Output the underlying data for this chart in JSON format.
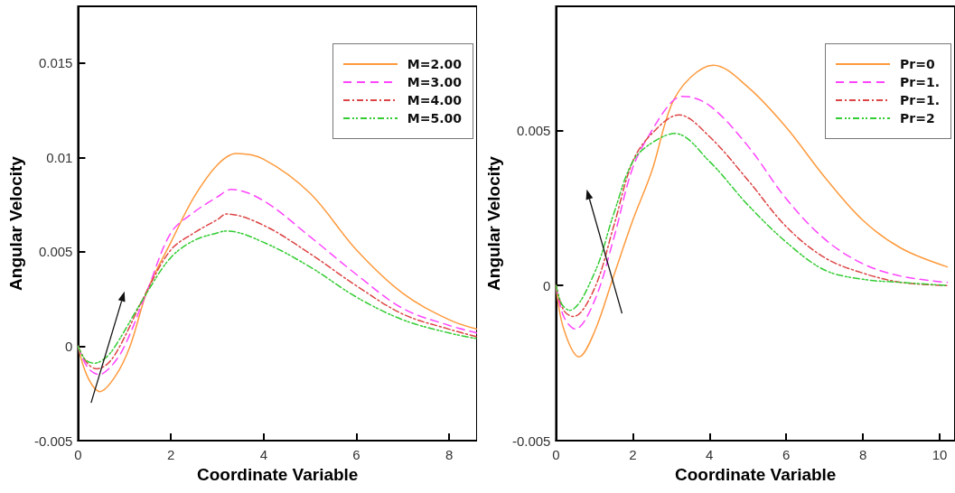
{
  "chart_data": [
    {
      "type": "line",
      "xlabel": "Coordinate Variable",
      "ylabel": "Angular Velocity",
      "xlim": [
        0,
        8.6
      ],
      "xticks": [
        0,
        2,
        4,
        6,
        8
      ],
      "ylim": [
        -0.005,
        0.018
      ],
      "yticks": [
        -0.005,
        0,
        0.005,
        0.01,
        0.015
      ],
      "grid": false,
      "legend": "top right",
      "marker": "none",
      "series": [
        {
          "name": "M=2.00",
          "color": "#ff9a3c",
          "line_style": "solid",
          "x": [
            0,
            0.2,
            0.47,
            0.8,
            1.12,
            1.5,
            2,
            2.5,
            3,
            3.4,
            4,
            5,
            6,
            7,
            8,
            8.6
          ],
          "values": [
            0,
            -0.0016,
            -0.0024,
            -0.0016,
            0,
            0.003,
            0.0055,
            0.0079,
            0.0096,
            0.0102,
            0.0099,
            0.0081,
            0.0051,
            0.0028,
            0.0014,
            0.0009
          ]
        },
        {
          "name": "M=3.00",
          "color": "#ff44ff",
          "line_style": "dashed",
          "x": [
            0,
            0.2,
            0.45,
            0.7,
            1,
            1.5,
            2,
            2.5,
            3,
            3.3,
            4,
            5,
            6,
            7,
            8,
            8.6
          ],
          "values": [
            0,
            -0.0011,
            -0.0015,
            -0.0011,
            0,
            0.003,
            0.006,
            0.0071,
            0.0079,
            0.0083,
            0.0077,
            0.0058,
            0.0038,
            0.002,
            0.0011,
            0.0007
          ]
        },
        {
          "name": "M=4.00",
          "color": "#dd4444",
          "line_style": "dashdot",
          "x": [
            0,
            0.2,
            0.4,
            0.65,
            0.9,
            1.5,
            2,
            2.5,
            3,
            3.2,
            4,
            5,
            6,
            7,
            8,
            8.6
          ],
          "values": [
            0,
            -0.0009,
            -0.0012,
            -0.0009,
            0,
            0.003,
            0.0051,
            0.006,
            0.0067,
            0.007,
            0.0064,
            0.0049,
            0.0032,
            0.0017,
            0.0009,
            0.0005
          ]
        },
        {
          "name": "M=5.00",
          "color": "#33cc33",
          "line_style": "dashdotdot",
          "x": [
            0,
            0.15,
            0.35,
            0.6,
            0.8,
            1.5,
            2,
            2.5,
            3,
            3.2,
            4,
            5,
            6,
            7,
            8,
            8.6
          ],
          "values": [
            0,
            -0.0007,
            -0.0009,
            -0.0006,
            0,
            0.0029,
            0.0047,
            0.0056,
            0.006,
            0.0061,
            0.0055,
            0.0042,
            0.0026,
            0.0014,
            0.0007,
            0.0004
          ]
        }
      ]
    },
    {
      "type": "line",
      "xlabel": "Coordinate Variable",
      "ylabel": "Angular Velocity",
      "xlim": [
        0,
        10.4
      ],
      "xticks": [
        0,
        2,
        4,
        6,
        8,
        10
      ],
      "ylim": [
        -0.005,
        0.009
      ],
      "yticks": [
        -0.005,
        0,
        0.005
      ],
      "grid": false,
      "legend": "top right",
      "marker": "none",
      "series": [
        {
          "name": "Pr=0",
          "color": "#ff9a3c",
          "line_style": "solid",
          "x": [
            0,
            0.2,
            0.6,
            1,
            1.5,
            2,
            2.5,
            3,
            3.5,
            4.1,
            5,
            6,
            7,
            8,
            9,
            10.2
          ],
          "values": [
            0,
            -0.0014,
            -0.0023,
            -0.0015,
            0.0003,
            0.0021,
            0.0037,
            0.0058,
            0.0067,
            0.0071,
            0.0064,
            0.0051,
            0.0035,
            0.0021,
            0.0012,
            0.0006
          ]
        },
        {
          "name": "Pr=1.",
          "color": "#ff44ff",
          "line_style": "dashed",
          "x": [
            0,
            0.2,
            0.5,
            1,
            1.5,
            2,
            2.5,
            3,
            3.3,
            4,
            5,
            6,
            7,
            8,
            9,
            10.2
          ],
          "values": [
            0,
            -0.001,
            -0.0014,
            -0.0005,
            0.0015,
            0.0038,
            0.005,
            0.0059,
            0.0061,
            0.0058,
            0.0045,
            0.0028,
            0.0015,
            0.0007,
            0.0003,
            0.0001
          ]
        },
        {
          "name": "Pr=1.",
          "color": "#dd4444",
          "line_style": "dashdot",
          "x": [
            0,
            0.2,
            0.45,
            1,
            1.5,
            2,
            2.5,
            3.2,
            4,
            5,
            6,
            7,
            8,
            9,
            10.2
          ],
          "values": [
            0,
            -0.0008,
            -0.001,
            -0.0001,
            0.0019,
            0.004,
            0.0049,
            0.0055,
            0.0048,
            0.0034,
            0.0019,
            0.0009,
            0.0004,
            0.0001,
            0
          ]
        },
        {
          "name": "Pr=2",
          "color": "#33cc33",
          "line_style": "dashdotdot",
          "x": [
            0,
            0.15,
            0.35,
            1,
            1.5,
            2,
            2.5,
            3.1,
            4,
            5,
            6,
            7,
            8,
            9,
            10.2
          ],
          "values": [
            0,
            -0.0006,
            -0.0008,
            0.0004,
            0.0023,
            0.004,
            0.0046,
            0.0049,
            0.004,
            0.0026,
            0.0014,
            0.0005,
            0.0002,
            0.0001,
            0
          ]
        }
      ]
    }
  ]
}
